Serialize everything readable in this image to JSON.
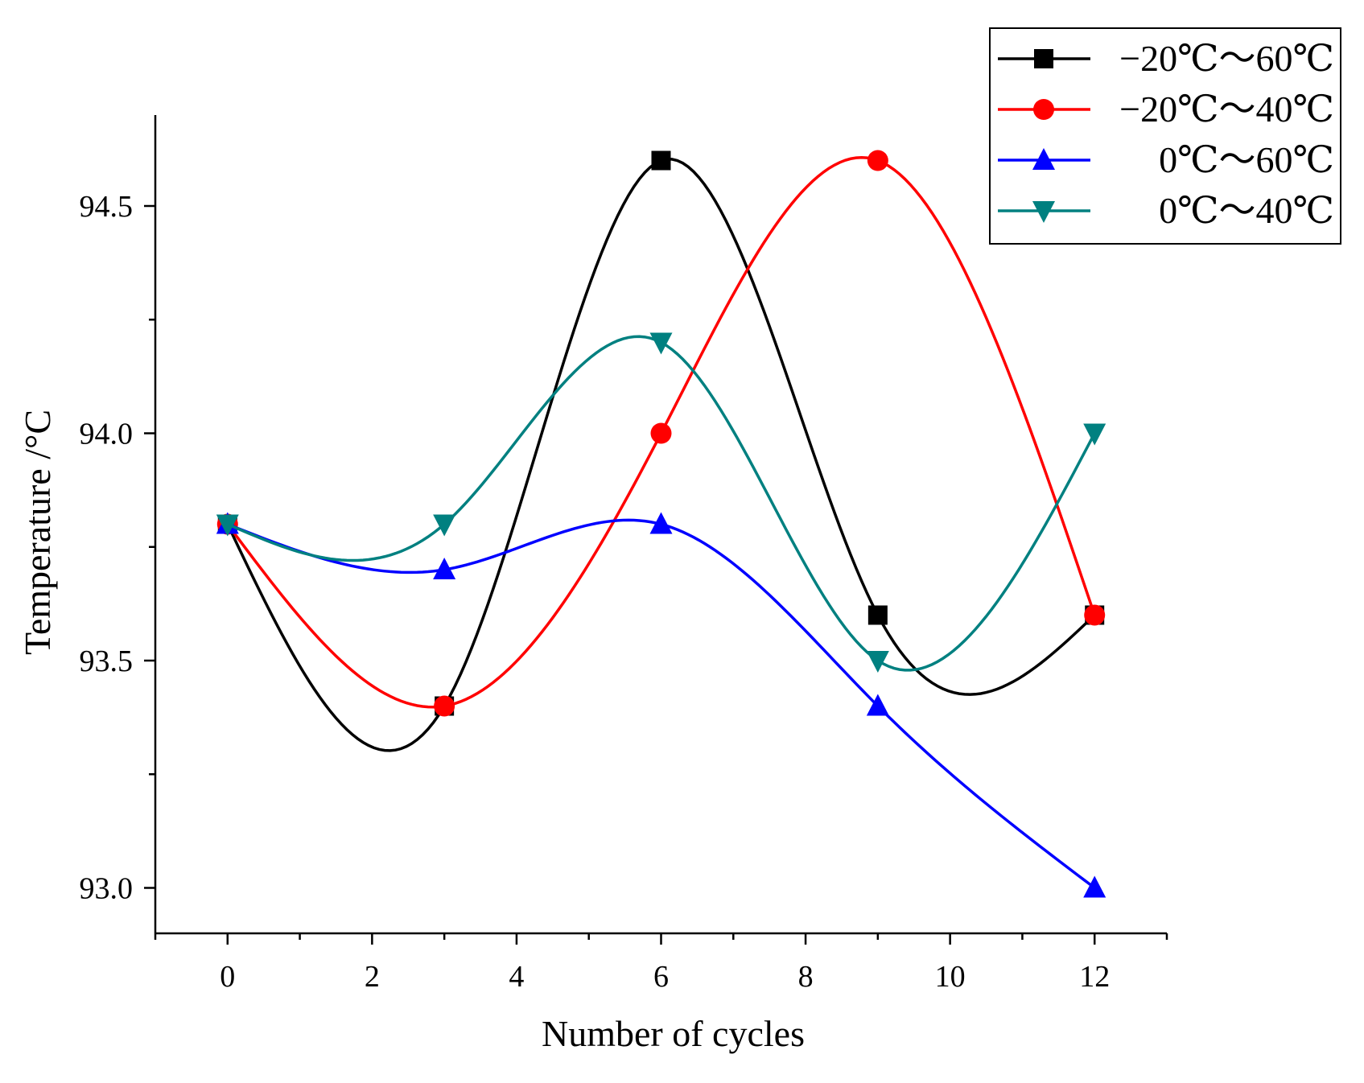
{
  "chart_data": {
    "type": "line",
    "title": "",
    "xlabel": "Number of cycles",
    "ylabel": "Temperature /°C",
    "xlim": [
      -1,
      13
    ],
    "ylim": [
      92.9,
      94.7
    ],
    "xticks": [
      0,
      2,
      4,
      6,
      8,
      10,
      12
    ],
    "xtick_labels": [
      "0",
      "2",
      "4",
      "6",
      "8",
      "10",
      "12"
    ],
    "yticks": [
      93.0,
      93.5,
      94.0,
      94.5
    ],
    "ytick_labels": [
      "93.0",
      "93.5",
      "94.0",
      "94.5"
    ],
    "x": [
      0,
      3,
      6,
      9,
      12
    ],
    "grid": false,
    "legend_position": "top-right",
    "series": [
      {
        "name": "−20℃～60℃",
        "color": "#000000",
        "marker": "square",
        "values": [
          93.8,
          93.4,
          94.6,
          93.6,
          93.6
        ]
      },
      {
        "name": "−20℃～40℃",
        "color": "#ff0000",
        "marker": "circle",
        "values": [
          93.8,
          93.4,
          94.0,
          94.6,
          93.6
        ]
      },
      {
        "name": "0℃～60℃",
        "color": "#0000ff",
        "marker": "triangle-up",
        "values": [
          93.8,
          93.7,
          93.8,
          93.4,
          93.0
        ]
      },
      {
        "name": "0℃～40℃",
        "color": "#008080",
        "marker": "triangle-down",
        "values": [
          93.8,
          93.8,
          94.2,
          93.5,
          94.0
        ]
      }
    ]
  }
}
